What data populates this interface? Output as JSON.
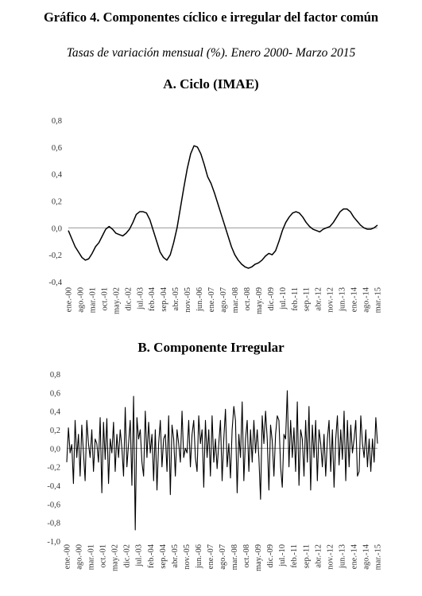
{
  "figure": {
    "title": "Gráfico 4. Componentes cíclico e irregular del factor común",
    "subtitle": "Tasas de variación mensual (%). Enero 2000- Marzo 2015"
  },
  "chart_data": [
    {
      "type": "line",
      "title": "A.  Ciclo (IMAE)",
      "ylim": [
        -0.4,
        0.8
      ],
      "yticks": [
        "-0,4",
        "-0,2",
        "0,0",
        "0,2",
        "0,4",
        "0,6",
        "0,8"
      ],
      "xticks": [
        "ene.-00",
        "ago.-00",
        "mar.-01",
        "oct.-01",
        "may.-02",
        "dic.-02",
        "jul.-03",
        "feb.-04",
        "sep.-04",
        "abr.-05",
        "nov.-05",
        "jun.-06",
        "ene.-07",
        "ago.-07",
        "mar.-08",
        "oct.-08",
        "may.-09",
        "dic.-09",
        "jul.-10",
        "feb.-11",
        "sep.-11",
        "abr.-12",
        "nov.-12",
        "jun.-13",
        "ene.-14",
        "ago.-14",
        "mar.-15"
      ],
      "grid": false,
      "series": [
        {
          "color": "#000000",
          "x": [
            0,
            2,
            4,
            6,
            8,
            10,
            12,
            14,
            16,
            18,
            20,
            22,
            24,
            26,
            28,
            30,
            32,
            34,
            36,
            38,
            40,
            42,
            44,
            46,
            48,
            50,
            52,
            54,
            56,
            58,
            60,
            62,
            64,
            66,
            68,
            70,
            72,
            74,
            76,
            78,
            80,
            82,
            84,
            86,
            88,
            90,
            92,
            94,
            96,
            98,
            100,
            102,
            104,
            106,
            108,
            110,
            112,
            114,
            116,
            118,
            120,
            122,
            124,
            126,
            128,
            130,
            132,
            134,
            136,
            138,
            140,
            142,
            144,
            146,
            148,
            150,
            152,
            154,
            156,
            158,
            160,
            162,
            164,
            166,
            168,
            170,
            172,
            174,
            176,
            178,
            180,
            182
          ],
          "values": [
            -0.02,
            -0.08,
            -0.14,
            -0.18,
            -0.22,
            -0.24,
            -0.23,
            -0.19,
            -0.14,
            -0.11,
            -0.06,
            -0.01,
            0.01,
            -0.01,
            -0.04,
            -0.05,
            -0.06,
            -0.04,
            -0.01,
            0.04,
            0.1,
            0.12,
            0.12,
            0.11,
            0.06,
            -0.02,
            -0.1,
            -0.18,
            -0.22,
            -0.24,
            -0.2,
            -0.11,
            0.0,
            0.15,
            0.3,
            0.44,
            0.55,
            0.61,
            0.6,
            0.55,
            0.47,
            0.38,
            0.33,
            0.26,
            0.18,
            0.1,
            0.02,
            -0.06,
            -0.14,
            -0.2,
            -0.24,
            -0.27,
            -0.29,
            -0.3,
            -0.29,
            -0.27,
            -0.26,
            -0.24,
            -0.21,
            -0.19,
            -0.2,
            -0.17,
            -0.1,
            -0.02,
            0.04,
            0.08,
            0.11,
            0.12,
            0.11,
            0.08,
            0.04,
            0.01,
            -0.01,
            -0.02,
            -0.03,
            -0.01,
            0.0,
            0.01,
            0.04,
            0.08,
            0.12,
            0.14,
            0.14,
            0.12,
            0.08,
            0.05,
            0.02,
            0.0,
            -0.01,
            -0.01,
            0.0,
            0.02
          ]
        }
      ]
    },
    {
      "type": "line",
      "title": "B.  Componente Irregular",
      "ylim": [
        -1.0,
        0.8
      ],
      "yticks": [
        "-1,0",
        "-0,8",
        "-0,6",
        "-0,4",
        "-0,2",
        "0,0",
        "0,2",
        "0,4",
        "0,6",
        "0,8"
      ],
      "xticks": [
        "ene.-00",
        "ago.-00",
        "mar.-01",
        "oct.-01",
        "may.-02",
        "dic.-02",
        "jul.-03",
        "feb.-04",
        "sep.-04",
        "abr.-05",
        "nov.-05",
        "jun.-06",
        "ene.-07",
        "ago.-07",
        "mar.-08",
        "oct.-08",
        "may.-09",
        "dic.-09",
        "jul.-10",
        "feb.-11",
        "sep.-11",
        "abr.-12",
        "nov.-12",
        "jun.-13",
        "ene.-14",
        "ago.-14",
        "mar.-15"
      ],
      "grid": false,
      "series": [
        {
          "color": "#000000",
          "values": [
            -0.15,
            0.22,
            -0.05,
            0.04,
            -0.38,
            0.3,
            -0.1,
            0.15,
            -0.3,
            0.25,
            -0.05,
            -0.35,
            0.3,
            0.05,
            -0.1,
            0.2,
            -0.25,
            0.1,
            0.05,
            -0.15,
            0.33,
            -0.48,
            0.28,
            -0.12,
            0.32,
            -0.38,
            0.1,
            -0.05,
            0.28,
            -0.25,
            0.15,
            -0.1,
            0.2,
            0.0,
            -0.3,
            0.44,
            -0.2,
            0.05,
            0.3,
            -0.4,
            0.56,
            -0.88,
            0.33,
            0.1,
            0.2,
            -0.15,
            -0.3,
            0.4,
            -0.1,
            0.28,
            -0.05,
            0.15,
            -0.35,
            0.2,
            -0.45,
            0.05,
            0.3,
            -0.2,
            0.1,
            0.15,
            -0.25,
            0.35,
            -0.5,
            0.25,
            0.1,
            -0.3,
            0.2,
            0.05,
            -0.15,
            0.4,
            -0.1,
            0.0,
            -0.05,
            0.3,
            -0.2,
            0.15,
            0.3,
            -0.1,
            -0.25,
            0.35,
            0.05,
            0.2,
            -0.42,
            0.3,
            -0.1,
            0.2,
            -0.3,
            0.35,
            -0.15,
            0.1,
            -0.22,
            0.05,
            0.3,
            -0.35,
            0.1,
            0.42,
            -0.2,
            0.05,
            -0.32,
            0.2,
            0.45,
            0.3,
            -0.48,
            0.15,
            -0.1,
            0.5,
            -0.35,
            0.1,
            0.3,
            -0.25,
            0.2,
            -0.15,
            0.3,
            -0.05,
            0.2,
            -0.1,
            -0.55,
            0.35,
            0.05,
            0.4,
            0.1,
            -0.45,
            0.25,
            0.08,
            -0.3,
            0.15,
            0.35,
            0.3,
            -0.2,
            -0.42,
            0.15,
            0.1,
            0.62,
            -0.2,
            0.3,
            -0.1,
            0.22,
            -0.25,
            0.5,
            -0.4,
            0.2,
            0.1,
            -0.3,
            0.3,
            -0.15,
            0.45,
            -0.45,
            0.25,
            -0.1,
            0.3,
            -0.35,
            0.2,
            0.05,
            -0.2,
            0.15,
            -0.3,
            0.1,
            0.3,
            -0.25,
            0.2,
            -0.42,
            0.1,
            0.35,
            -0.18,
            0.2,
            -0.12,
            0.4,
            -0.35,
            0.3,
            -0.2,
            0.25,
            -0.05,
            0.1,
            0.3,
            -0.3,
            -0.25,
            0.35,
            0.05,
            -0.1,
            0.2,
            -0.2,
            0.1,
            -0.25,
            0.1,
            -0.15,
            0.33,
            0.05
          ]
        }
      ]
    }
  ]
}
